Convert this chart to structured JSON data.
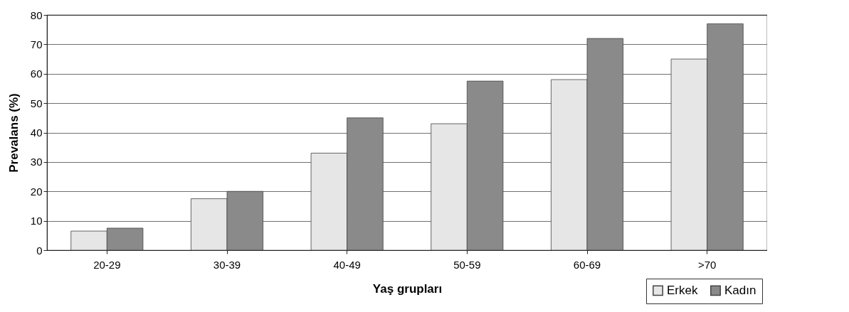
{
  "chart_data": {
    "type": "bar",
    "xlabel": "Yaş grupları",
    "ylabel": "Prevalans (%)",
    "categories": [
      "20-29",
      "30-39",
      "40-49",
      "50-59",
      "60-69",
      ">70"
    ],
    "series": [
      {
        "name": "Erkek",
        "color": "#e6e6e6",
        "values": [
          6.5,
          17.5,
          33,
          43,
          58,
          65
        ]
      },
      {
        "name": "Kadın",
        "color": "#8a8a8a",
        "values": [
          7.5,
          20,
          45,
          57.5,
          72,
          77
        ]
      }
    ],
    "ylim": [
      0,
      80
    ],
    "yticks": [
      0,
      10,
      20,
      30,
      40,
      50,
      60,
      70,
      80
    ],
    "grid": "y",
    "legend": "bottom right"
  }
}
